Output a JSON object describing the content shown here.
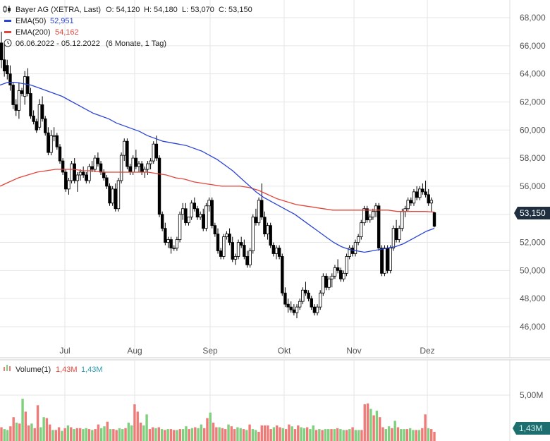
{
  "legend": {
    "instrument": "Bayer AG (XETRA, Last)",
    "open_label": "O: 54,120",
    "high_label": "H: 54,180",
    "low_label": "L: 53,070",
    "close_label": "C: 53,150",
    "ema50_label": "EMA(50)",
    "ema50_value": "52,951",
    "ema200_label": "EMA(200)",
    "ema200_value": "54,162",
    "range_text": "06.06.2022 - 05.12.2022",
    "interval_text": "(6 Monate, 1 Tag)",
    "volume_label": "Volume(1)",
    "volume_value_red": "1,43M",
    "volume_value_blue": "1,43M"
  },
  "price_tag": "53,150",
  "volume_tag": "1,43M",
  "colors": {
    "ema50": "#2b44d6",
    "ema200": "#e2453b",
    "candle": "#000000",
    "volume_up": "#7fcf7f",
    "volume_down": "#ee7b78",
    "tag_bg": "#1f2f3f",
    "tag_vol_bg": "#1d6f6f",
    "grid": "#e6e6e6"
  },
  "chart_data": {
    "type": "candlestick",
    "x_range": [
      "2022-06-06",
      "2022-12-05"
    ],
    "y_ticks": [
      "68,000",
      "66,000",
      "64,000",
      "62,000",
      "60,000",
      "58,000",
      "56,000",
      "54,000",
      "52,000",
      "50,000",
      "48,000",
      "46,000"
    ],
    "x_ticks": [
      "Jul",
      "Aug",
      "Sep",
      "Okt",
      "Nov",
      "Dez"
    ],
    "ohlc": [
      [
        66.2,
        67.0,
        64.4,
        65.0
      ],
      [
        65.0,
        66.2,
        63.8,
        64.2
      ],
      [
        64.6,
        65.0,
        63.6,
        64.0
      ],
      [
        64.0,
        64.6,
        62.8,
        63.2
      ],
      [
        63.2,
        63.4,
        61.5,
        61.8
      ],
      [
        61.8,
        62.2,
        61.0,
        61.4
      ],
      [
        61.4,
        63.4,
        60.8,
        62.8
      ],
      [
        62.8,
        63.0,
        62.4,
        62.6
      ],
      [
        62.4,
        64.2,
        61.8,
        63.8
      ],
      [
        63.8,
        64.4,
        62.4,
        62.6
      ],
      [
        62.6,
        63.0,
        60.8,
        61.0
      ],
      [
        61.0,
        61.4,
        60.4,
        60.6
      ],
      [
        60.6,
        60.8,
        59.8,
        60.0
      ],
      [
        60.2,
        62.2,
        60.0,
        61.8
      ],
      [
        61.8,
        62.4,
        60.6,
        60.8
      ],
      [
        60.8,
        61.0,
        59.6,
        59.8
      ],
      [
        59.8,
        60.2,
        58.2,
        58.4
      ],
      [
        58.4,
        60.0,
        58.2,
        59.6
      ],
      [
        59.6,
        60.2,
        59.2,
        59.6
      ],
      [
        59.6,
        59.8,
        58.6,
        58.8
      ],
      [
        58.8,
        59.0,
        57.6,
        57.8
      ],
      [
        57.8,
        58.0,
        56.8,
        57.0
      ],
      [
        57.0,
        57.2,
        55.6,
        55.8
      ],
      [
        55.8,
        56.6,
        55.4,
        56.4
      ],
      [
        56.4,
        57.8,
        56.2,
        57.6
      ],
      [
        57.6,
        58.0,
        56.2,
        56.4
      ],
      [
        56.4,
        57.0,
        55.6,
        56.8
      ],
      [
        56.8,
        57.2,
        56.4,
        57.0
      ],
      [
        57.0,
        57.4,
        56.6,
        56.8
      ],
      [
        56.8,
        57.0,
        56.2,
        56.4
      ],
      [
        56.4,
        57.6,
        56.2,
        57.4
      ],
      [
        57.4,
        57.8,
        57.0,
        57.2
      ],
      [
        57.2,
        58.2,
        57.0,
        58.0
      ],
      [
        58.0,
        58.4,
        57.4,
        57.6
      ],
      [
        57.6,
        57.8,
        56.8,
        57.0
      ],
      [
        57.0,
        57.2,
        56.4,
        56.6
      ],
      [
        56.6,
        56.8,
        55.8,
        56.0
      ],
      [
        56.0,
        56.2,
        54.6,
        54.8
      ],
      [
        54.8,
        56.0,
        54.6,
        55.8
      ],
      [
        55.8,
        56.2,
        54.2,
        54.4
      ],
      [
        54.4,
        56.6,
        54.2,
        56.4
      ],
      [
        56.4,
        58.4,
        56.2,
        58.2
      ],
      [
        58.2,
        59.4,
        57.8,
        59.2
      ],
      [
        59.2,
        59.4,
        57.2,
        57.4
      ],
      [
        57.4,
        57.6,
        56.8,
        57.0
      ],
      [
        57.0,
        58.2,
        56.8,
        58.0
      ],
      [
        58.0,
        58.6,
        57.2,
        57.4
      ],
      [
        57.4,
        57.8,
        57.0,
        57.6
      ],
      [
        57.6,
        57.8,
        56.8,
        57.0
      ],
      [
        57.0,
        57.4,
        56.6,
        57.2
      ],
      [
        57.2,
        57.8,
        56.8,
        57.6
      ],
      [
        57.6,
        58.0,
        57.2,
        57.8
      ],
      [
        57.8,
        59.2,
        57.6,
        59.0
      ],
      [
        59.0,
        59.6,
        57.8,
        58.0
      ],
      [
        58.0,
        58.2,
        53.8,
        54.0
      ],
      [
        54.0,
        54.2,
        52.8,
        53.0
      ],
      [
        53.0,
        53.4,
        51.8,
        52.0
      ],
      [
        52.0,
        52.4,
        51.6,
        52.2
      ],
      [
        52.2,
        52.4,
        51.2,
        51.6
      ],
      [
        51.6,
        51.8,
        51.4,
        51.6
      ],
      [
        51.6,
        52.4,
        51.4,
        52.2
      ],
      [
        52.2,
        54.2,
        52.0,
        54.0
      ],
      [
        54.0,
        54.8,
        53.6,
        54.4
      ],
      [
        54.4,
        54.8,
        53.2,
        53.4
      ],
      [
        53.4,
        53.8,
        53.2,
        53.8
      ],
      [
        53.8,
        55.0,
        53.6,
        54.8
      ],
      [
        54.8,
        55.2,
        54.2,
        54.4
      ],
      [
        54.4,
        54.6,
        53.6,
        53.8
      ],
      [
        53.8,
        54.2,
        53.6,
        54.0
      ],
      [
        54.0,
        54.4,
        52.8,
        53.0
      ],
      [
        53.0,
        54.8,
        52.8,
        54.6
      ],
      [
        54.6,
        55.2,
        54.2,
        55.0
      ],
      [
        55.0,
        55.2,
        53.0,
        53.2
      ],
      [
        53.2,
        53.4,
        52.4,
        52.6
      ],
      [
        52.6,
        53.0,
        51.2,
        51.4
      ],
      [
        51.4,
        51.6,
        50.8,
        51.0
      ],
      [
        51.0,
        52.6,
        50.8,
        52.4
      ],
      [
        52.4,
        52.8,
        52.2,
        52.6
      ],
      [
        52.6,
        53.0,
        51.8,
        52.0
      ],
      [
        52.0,
        52.4,
        50.6,
        50.8
      ],
      [
        50.8,
        51.2,
        50.4,
        51.0
      ],
      [
        51.0,
        52.2,
        50.8,
        52.0
      ],
      [
        52.0,
        52.4,
        51.6,
        51.8
      ],
      [
        51.8,
        52.2,
        50.8,
        51.0
      ],
      [
        51.0,
        51.4,
        50.2,
        50.4
      ],
      [
        50.4,
        51.6,
        50.2,
        51.4
      ],
      [
        51.4,
        54.0,
        51.2,
        53.8
      ],
      [
        53.8,
        54.4,
        53.2,
        53.4
      ],
      [
        53.4,
        55.2,
        53.2,
        55.0
      ],
      [
        55.0,
        56.2,
        53.6,
        53.8
      ],
      [
        53.8,
        54.2,
        52.4,
        52.6
      ],
      [
        52.6,
        53.4,
        52.2,
        53.2
      ],
      [
        53.2,
        53.4,
        51.6,
        51.8
      ],
      [
        51.8,
        52.0,
        51.0,
        51.2
      ],
      [
        51.2,
        51.8,
        50.8,
        51.6
      ],
      [
        51.6,
        51.8,
        50.8,
        51.0
      ],
      [
        51.0,
        51.2,
        48.2,
        48.4
      ],
      [
        48.4,
        48.8,
        47.4,
        47.6
      ],
      [
        47.6,
        48.0,
        47.0,
        47.4
      ],
      [
        47.4,
        47.8,
        47.0,
        47.2
      ],
      [
        47.2,
        47.6,
        46.8,
        47.0
      ],
      [
        47.0,
        47.6,
        46.6,
        47.4
      ],
      [
        47.4,
        48.0,
        47.2,
        47.8
      ],
      [
        47.8,
        48.8,
        47.6,
        48.6
      ],
      [
        48.6,
        49.2,
        48.2,
        48.4
      ],
      [
        48.4,
        48.6,
        47.8,
        48.0
      ],
      [
        48.0,
        48.2,
        47.2,
        47.4
      ],
      [
        47.4,
        47.6,
        46.8,
        47.0
      ],
      [
        47.0,
        47.6,
        46.8,
        47.4
      ],
      [
        47.4,
        48.6,
        47.2,
        48.4
      ],
      [
        48.4,
        49.8,
        48.2,
        49.6
      ],
      [
        49.6,
        49.8,
        48.6,
        48.8
      ],
      [
        48.8,
        49.6,
        48.6,
        49.4
      ],
      [
        49.4,
        49.8,
        48.8,
        49.6
      ],
      [
        49.6,
        50.4,
        49.4,
        50.2
      ],
      [
        50.2,
        50.8,
        49.8,
        50.0
      ],
      [
        50.0,
        50.2,
        49.2,
        49.4
      ],
      [
        49.4,
        50.0,
        49.2,
        49.8
      ],
      [
        49.8,
        51.2,
        49.6,
        51.0
      ],
      [
        51.0,
        51.8,
        50.8,
        51.6
      ],
      [
        51.6,
        51.8,
        51.0,
        51.2
      ],
      [
        51.2,
        52.2,
        51.0,
        52.0
      ],
      [
        52.0,
        52.6,
        51.8,
        52.4
      ],
      [
        52.4,
        53.6,
        52.2,
        53.4
      ],
      [
        53.4,
        54.6,
        53.2,
        54.4
      ],
      [
        54.4,
        54.6,
        53.4,
        53.6
      ],
      [
        53.6,
        54.0,
        53.4,
        53.8
      ],
      [
        53.8,
        54.4,
        53.6,
        54.2
      ],
      [
        54.2,
        54.8,
        53.8,
        54.6
      ],
      [
        54.6,
        54.8,
        51.4,
        51.6
      ],
      [
        51.6,
        51.8,
        49.6,
        49.8
      ],
      [
        49.8,
        51.8,
        49.6,
        51.6
      ],
      [
        51.6,
        51.8,
        49.8,
        50.0
      ],
      [
        50.0,
        51.8,
        49.8,
        51.6
      ],
      [
        51.6,
        53.2,
        51.4,
        53.0
      ],
      [
        53.0,
        53.6,
        52.0,
        52.2
      ],
      [
        52.2,
        53.2,
        52.0,
        53.0
      ],
      [
        53.0,
        54.4,
        52.8,
        54.2
      ],
      [
        54.2,
        54.6,
        53.8,
        54.4
      ],
      [
        54.4,
        55.2,
        54.2,
        55.0
      ],
      [
        55.0,
        55.2,
        54.6,
        54.8
      ],
      [
        54.8,
        55.8,
        54.6,
        55.6
      ],
      [
        55.6,
        56.0,
        55.0,
        55.2
      ],
      [
        55.2,
        56.0,
        55.0,
        55.8
      ],
      [
        55.8,
        56.2,
        55.4,
        55.6
      ],
      [
        55.6,
        56.4,
        55.2,
        55.4
      ],
      [
        55.4,
        55.8,
        54.6,
        54.8
      ],
      [
        54.8,
        55.2,
        54.2,
        55.0
      ],
      [
        54.12,
        54.18,
        53.07,
        53.15
      ]
    ],
    "ema50": [
      63.2,
      63.4,
      63.4,
      63.3,
      63.2,
      63.0,
      62.8,
      62.6,
      62.4,
      62.1,
      61.8,
      61.5,
      61.2,
      61.0,
      60.8,
      60.5,
      60.3,
      60.1,
      59.9,
      59.6,
      59.4,
      59.2,
      59.1,
      59.0,
      58.9,
      58.7,
      58.5,
      58.2,
      57.9,
      57.5,
      57.1,
      56.6,
      56.1,
      55.6,
      55.2,
      54.9,
      54.6,
      54.3,
      54.0,
      53.6,
      53.2,
      52.8,
      52.4,
      52.0,
      51.7,
      51.5,
      51.4,
      51.3,
      51.4,
      51.5,
      51.6,
      51.7,
      51.9,
      52.2,
      52.5,
      52.8,
      53.0
    ],
    "ema200": [
      56.0,
      56.3,
      56.6,
      56.8,
      57.0,
      57.1,
      57.2,
      57.2,
      57.2,
      57.1,
      57.1,
      57.0,
      57.0,
      57.0,
      57.0,
      57.0,
      57.0,
      56.9,
      56.8,
      56.6,
      56.5,
      56.3,
      56.2,
      56.1,
      56.0,
      56.0,
      56.0,
      55.9,
      55.7,
      55.4,
      55.1,
      54.9,
      54.7,
      54.6,
      54.5,
      54.4,
      54.3,
      54.3,
      54.3,
      54.3,
      54.3,
      54.3,
      54.3,
      54.2,
      54.2,
      54.2,
      54.2,
      54.16
    ],
    "volume_max_label": "5,00M",
    "volume": [
      [
        1.5,
        "d"
      ],
      [
        1.3,
        "u"
      ],
      [
        1.2,
        "u"
      ],
      [
        1.6,
        "d"
      ],
      [
        2.6,
        "d"
      ],
      [
        2.0,
        "u"
      ],
      [
        1.9,
        "d"
      ],
      [
        4.6,
        "u"
      ],
      [
        3.2,
        "d"
      ],
      [
        1.7,
        "d"
      ],
      [
        1.9,
        "u"
      ],
      [
        1.4,
        "d"
      ],
      [
        3.9,
        "d"
      ],
      [
        1.5,
        "u"
      ],
      [
        2.6,
        "u"
      ],
      [
        2.5,
        "d"
      ],
      [
        1.8,
        "d"
      ],
      [
        1.2,
        "u"
      ],
      [
        1.2,
        "d"
      ],
      [
        1.5,
        "d"
      ],
      [
        1.1,
        "u"
      ],
      [
        1.4,
        "d"
      ],
      [
        1.7,
        "u"
      ],
      [
        1.5,
        "d"
      ],
      [
        1.3,
        "u"
      ],
      [
        1.4,
        "d"
      ],
      [
        1.4,
        "d"
      ],
      [
        1.3,
        "u"
      ],
      [
        1.4,
        "u"
      ],
      [
        1.3,
        "d"
      ],
      [
        1.2,
        "u"
      ],
      [
        1.3,
        "d"
      ],
      [
        1.8,
        "d"
      ],
      [
        1.4,
        "u"
      ],
      [
        1.6,
        "u"
      ],
      [
        2.1,
        "d"
      ],
      [
        1.3,
        "u"
      ],
      [
        1.3,
        "d"
      ],
      [
        1.2,
        "d"
      ],
      [
        1.4,
        "u"
      ],
      [
        1.3,
        "u"
      ],
      [
        1.4,
        "d"
      ],
      [
        2.0,
        "u"
      ],
      [
        1.7,
        "u"
      ],
      [
        4.0,
        "d"
      ],
      [
        3.2,
        "d"
      ],
      [
        2.0,
        "d"
      ],
      [
        1.7,
        "u"
      ],
      [
        2.9,
        "u"
      ],
      [
        1.3,
        "d"
      ],
      [
        1.5,
        "d"
      ],
      [
        1.4,
        "u"
      ],
      [
        1.5,
        "d"
      ],
      [
        1.3,
        "u"
      ],
      [
        1.2,
        "d"
      ],
      [
        1.3,
        "u"
      ],
      [
        1.3,
        "d"
      ],
      [
        1.2,
        "d"
      ],
      [
        1.2,
        "u"
      ],
      [
        1.3,
        "d"
      ],
      [
        1.3,
        "u"
      ],
      [
        1.6,
        "u"
      ],
      [
        1.3,
        "d"
      ],
      [
        1.4,
        "u"
      ],
      [
        1.5,
        "d"
      ],
      [
        1.4,
        "u"
      ],
      [
        1.8,
        "u"
      ],
      [
        1.4,
        "d"
      ],
      [
        2.5,
        "d"
      ],
      [
        3.1,
        "u"
      ],
      [
        2.0,
        "d"
      ],
      [
        1.5,
        "d"
      ],
      [
        1.5,
        "u"
      ],
      [
        1.4,
        "d"
      ],
      [
        1.3,
        "d"
      ],
      [
        1.8,
        "u"
      ],
      [
        1.6,
        "d"
      ],
      [
        1.3,
        "d"
      ],
      [
        1.5,
        "u"
      ],
      [
        1.4,
        "u"
      ],
      [
        1.3,
        "d"
      ],
      [
        1.2,
        "u"
      ],
      [
        1.8,
        "d"
      ],
      [
        1.3,
        "u"
      ],
      [
        1.2,
        "u"
      ],
      [
        1.0,
        "d"
      ],
      [
        1.7,
        "d"
      ],
      [
        1.7,
        "d"
      ],
      [
        1.7,
        "d"
      ],
      [
        1.3,
        "d"
      ],
      [
        1.5,
        "u"
      ],
      [
        1.7,
        "d"
      ],
      [
        1.5,
        "d"
      ],
      [
        1.4,
        "u"
      ],
      [
        1.3,
        "d"
      ],
      [
        1.8,
        "d"
      ],
      [
        1.6,
        "u"
      ],
      [
        1.3,
        "d"
      ],
      [
        1.7,
        "d"
      ],
      [
        1.5,
        "u"
      ],
      [
        1.4,
        "u"
      ],
      [
        1.5,
        "d"
      ],
      [
        1.3,
        "u"
      ],
      [
        1.7,
        "u"
      ],
      [
        1.2,
        "d"
      ],
      [
        1.3,
        "u"
      ],
      [
        1.2,
        "d"
      ],
      [
        1.3,
        "u"
      ],
      [
        1.3,
        "u"
      ],
      [
        1.3,
        "d"
      ],
      [
        1.3,
        "u"
      ],
      [
        1.4,
        "d"
      ],
      [
        1.3,
        "u"
      ],
      [
        1.2,
        "u"
      ],
      [
        1.2,
        "d"
      ],
      [
        1.3,
        "u"
      ],
      [
        1.5,
        "d"
      ],
      [
        1.2,
        "u"
      ],
      [
        1.2,
        "u"
      ],
      [
        1.2,
        "d"
      ],
      [
        4.0,
        "d"
      ],
      [
        4.1,
        "d"
      ],
      [
        3.5,
        "u"
      ],
      [
        2.8,
        "d"
      ],
      [
        3.3,
        "u"
      ],
      [
        2.6,
        "d"
      ],
      [
        1.5,
        "d"
      ],
      [
        1.3,
        "u"
      ],
      [
        1.6,
        "u"
      ],
      [
        1.4,
        "d"
      ],
      [
        2.2,
        "u"
      ],
      [
        1.5,
        "d"
      ],
      [
        1.3,
        "u"
      ],
      [
        1.3,
        "u"
      ],
      [
        1.3,
        "d"
      ],
      [
        1.4,
        "u"
      ],
      [
        1.2,
        "u"
      ],
      [
        1.2,
        "d"
      ],
      [
        1.2,
        "u"
      ],
      [
        1.4,
        "d"
      ],
      [
        2.9,
        "d"
      ],
      [
        1.4,
        "u"
      ],
      [
        1.3,
        "d"
      ],
      [
        1.0,
        "d"
      ]
    ]
  }
}
